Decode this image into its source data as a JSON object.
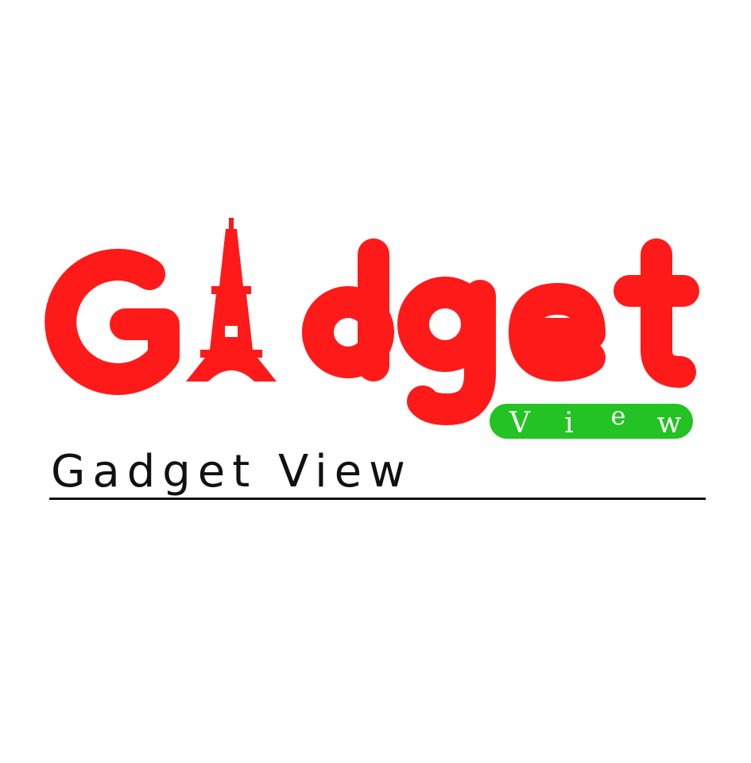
{
  "logo": {
    "wordmark": "Gadget",
    "badge_letters": [
      "V",
      "i",
      "e",
      "w"
    ],
    "icon": "eiffel-tower-icon",
    "colors": {
      "wordmark": "#ff1a1a",
      "badge_bg": "#22c322",
      "badge_text": "#ffffff"
    }
  },
  "tagline": {
    "text": "Gadget View",
    "color": "#111111"
  }
}
